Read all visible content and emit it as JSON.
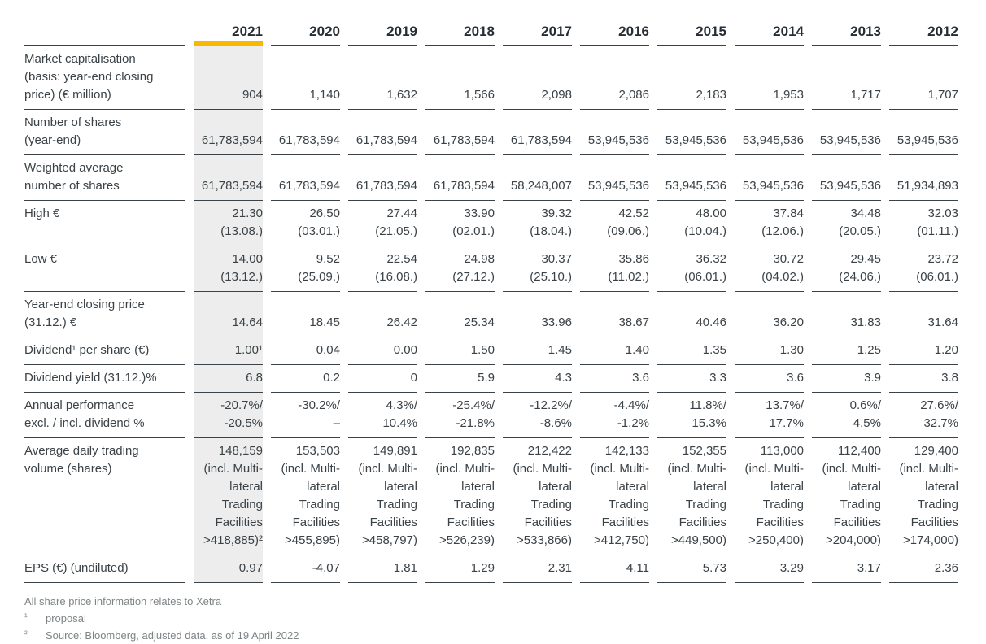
{
  "colors": {
    "accent_yellow": "#F9B800",
    "highlight_column": "#EDEDED",
    "rule": "#3c4348",
    "text": "#3a4247",
    "footer_text": "#7e8486"
  },
  "table": {
    "highlighted_year": "2021",
    "years": [
      "2021",
      "2020",
      "2019",
      "2018",
      "2017",
      "2016",
      "2015",
      "2014",
      "2013",
      "2012"
    ],
    "rows": [
      {
        "label": [
          "Market capitalisation",
          "(basis: year-end closing",
          "price) (€ million)"
        ],
        "values": [
          [
            "904"
          ],
          [
            "1,140"
          ],
          [
            "1,632"
          ],
          [
            "1,566"
          ],
          [
            "2,098"
          ],
          [
            "2,086"
          ],
          [
            "2,183"
          ],
          [
            "1,953"
          ],
          [
            "1,717"
          ],
          [
            "1,707"
          ]
        ]
      },
      {
        "label": [
          "Number of shares",
          "(year-end)"
        ],
        "values": [
          [
            "61,783,594"
          ],
          [
            "61,783,594"
          ],
          [
            "61,783,594"
          ],
          [
            "61,783,594"
          ],
          [
            "61,783,594"
          ],
          [
            "53,945,536"
          ],
          [
            "53,945,536"
          ],
          [
            "53,945,536"
          ],
          [
            "53,945,536"
          ],
          [
            "53,945,536"
          ]
        ]
      },
      {
        "label": [
          "Weighted average",
          "number of shares"
        ],
        "values": [
          [
            "61,783,594"
          ],
          [
            "61,783,594"
          ],
          [
            "61,783,594"
          ],
          [
            "61,783,594"
          ],
          [
            "58,248,007"
          ],
          [
            "53,945,536"
          ],
          [
            "53,945,536"
          ],
          [
            "53,945,536"
          ],
          [
            "53,945,536"
          ],
          [
            "51,934,893"
          ]
        ]
      },
      {
        "label": [
          "High €"
        ],
        "values": [
          [
            "21.30",
            "(13.08.)"
          ],
          [
            "26.50",
            "(03.01.)"
          ],
          [
            "27.44",
            "(21.05.)"
          ],
          [
            "33.90",
            "(02.01.)"
          ],
          [
            "39.32",
            "(18.04.)"
          ],
          [
            "42.52",
            "(09.06.)"
          ],
          [
            "48.00",
            "(10.04.)"
          ],
          [
            "37.84",
            "(12.06.)"
          ],
          [
            "34.48",
            "(20.05.)"
          ],
          [
            "32.03",
            "(01.11.)"
          ]
        ]
      },
      {
        "label": [
          "Low €"
        ],
        "values": [
          [
            "14.00",
            "(13.12.)"
          ],
          [
            "9.52",
            "(25.09.)"
          ],
          [
            "22.54",
            "(16.08.)"
          ],
          [
            "24.98",
            "(27.12.)"
          ],
          [
            "30.37",
            "(25.10.)"
          ],
          [
            "35.86",
            "(11.02.)"
          ],
          [
            "36.32",
            "(06.01.)"
          ],
          [
            "30.72",
            "(04.02.)"
          ],
          [
            "29.45",
            "(24.06.)"
          ],
          [
            "23.72",
            "(06.01.)"
          ]
        ]
      },
      {
        "label": [
          "Year-end closing price",
          "(31.12.) €"
        ],
        "values": [
          [
            "14.64"
          ],
          [
            "18.45"
          ],
          [
            "26.42"
          ],
          [
            "25.34"
          ],
          [
            "33.96"
          ],
          [
            "38.67"
          ],
          [
            "40.46"
          ],
          [
            "36.20"
          ],
          [
            "31.83"
          ],
          [
            "31.64"
          ]
        ]
      },
      {
        "label": [
          "Dividend¹ per share (€)"
        ],
        "values": [
          [
            "1.00¹"
          ],
          [
            "0.04"
          ],
          [
            "0.00"
          ],
          [
            "1.50"
          ],
          [
            "1.45"
          ],
          [
            "1.40"
          ],
          [
            "1.35"
          ],
          [
            "1.30"
          ],
          [
            "1.25"
          ],
          [
            "1.20"
          ]
        ]
      },
      {
        "label": [
          "Dividend yield (31.12.)%"
        ],
        "values": [
          [
            "6.8"
          ],
          [
            "0.2"
          ],
          [
            "0"
          ],
          [
            "5.9"
          ],
          [
            "4.3"
          ],
          [
            "3.6"
          ],
          [
            "3.3"
          ],
          [
            "3.6"
          ],
          [
            "3.9"
          ],
          [
            "3.8"
          ]
        ]
      },
      {
        "label": [
          "Annual performance",
          "excl. / incl. dividend %"
        ],
        "values": [
          [
            "-20.7%/",
            "-20.5%"
          ],
          [
            "-30.2%/",
            "–"
          ],
          [
            "4.3%/",
            "10.4%"
          ],
          [
            "-25.4%/",
            "-21.8%"
          ],
          [
            "-12.2%/",
            "-8.6%"
          ],
          [
            "-4.4%/",
            "-1.2%"
          ],
          [
            "11.8%/",
            "15.3%"
          ],
          [
            "13.7%/",
            "17.7%"
          ],
          [
            "0.6%/",
            "4.5%"
          ],
          [
            "27.6%/",
            "32.7%"
          ]
        ]
      },
      {
        "label": [
          "Average daily trading",
          "volume (shares)"
        ],
        "values": [
          [
            "148,159",
            "(incl. Multi-",
            "lateral",
            "Trading",
            "Facilities",
            ">418,885)²"
          ],
          [
            "153,503",
            "(incl. Multi-",
            "lateral",
            "Trading",
            "Facilities",
            ">455,895)"
          ],
          [
            "149,891",
            "(incl. Multi-",
            "lateral",
            "Trading",
            "Facilities",
            ">458,797)"
          ],
          [
            "192,835",
            "(incl. Multi-",
            "lateral",
            "Trading",
            "Facilities",
            ">526,239)"
          ],
          [
            "212,422",
            "(incl. Multi-",
            "lateral",
            "Trading",
            "Facilities",
            ">533,866)"
          ],
          [
            "142,133",
            "(incl. Multi-",
            "lateral",
            "Trading",
            "Facilities",
            ">412,750)"
          ],
          [
            "152,355",
            "(incl. Multi-",
            "lateral",
            "Trading",
            "Facilities",
            ">449,500)"
          ],
          [
            "113,000",
            "(incl. Multi-",
            "lateral",
            "Trading",
            "Facilities",
            ">250,400)"
          ],
          [
            "112,400",
            "(incl. Multi-",
            "lateral",
            "Trading",
            "Facilities",
            ">204,000)"
          ],
          [
            "129,400",
            "(incl. Multi-",
            "lateral",
            "Trading",
            "Facilities",
            ">174,000)"
          ]
        ]
      },
      {
        "label": [
          "EPS (€) (undiluted)"
        ],
        "values": [
          [
            "0.97"
          ],
          [
            "-4.07"
          ],
          [
            "1.81"
          ],
          [
            "1.29"
          ],
          [
            "2.31"
          ],
          [
            "4.11"
          ],
          [
            "5.73"
          ],
          [
            "3.29"
          ],
          [
            "3.17"
          ],
          [
            "2.36"
          ]
        ]
      }
    ]
  },
  "footnotes": {
    "general": "All share price information relates to Xetra",
    "items": [
      {
        "marker": "¹",
        "text": "proposal"
      },
      {
        "marker": "²",
        "text": "Source: Bloomberg, adjusted data, as of 19 April 2022"
      }
    ]
  }
}
